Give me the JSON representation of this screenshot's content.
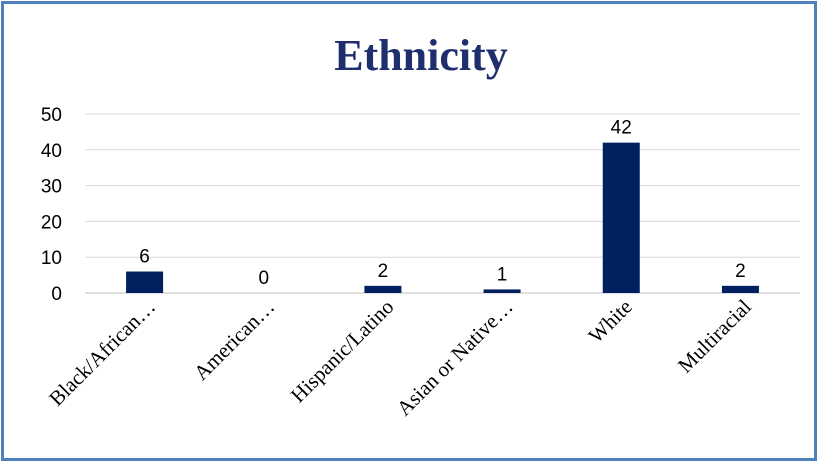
{
  "chart_data": {
    "type": "bar",
    "title": "Ethnicity",
    "categories": [
      "Black/African…",
      "American…",
      "Hispanic/Latino",
      "Asian or Native…",
      "White",
      "Multiracial"
    ],
    "values": [
      6,
      0,
      2,
      1,
      42,
      2
    ],
    "data_labels": [
      "6",
      "0",
      "2",
      "1",
      "42",
      "2"
    ],
    "ylim": [
      0,
      50
    ],
    "yticks": [
      "0",
      "10",
      "20",
      "30",
      "40",
      "50"
    ],
    "xlabel": "",
    "ylabel": "",
    "grid": true,
    "legend": "none"
  },
  "colors": {
    "bar": "#002060",
    "title": "#1f2f6e",
    "frame": "#4f81bd",
    "grid": "#d9d9d9"
  }
}
